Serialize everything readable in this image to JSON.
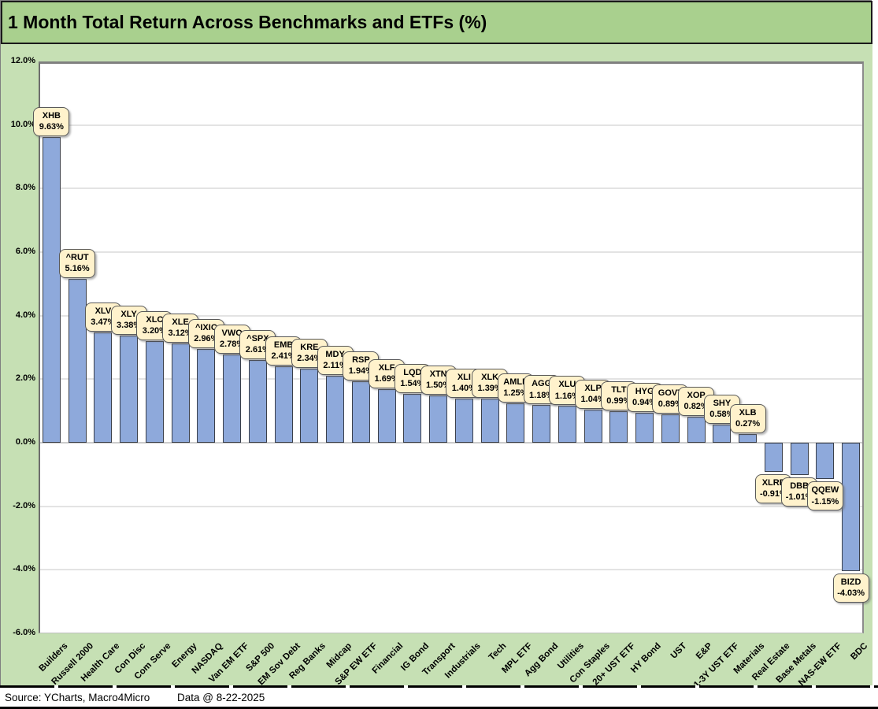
{
  "title": "1 Month Total Return Across Benchmarks and ETFs (%)",
  "footer": {
    "source": "Source: YCharts, Macro4Micro",
    "data_date": "Data @ 8-22-2025"
  },
  "colors": {
    "title_bg": "#A9D08E",
    "chart_bg": "#C6E0B4",
    "plot_bg": "#FFFFFF",
    "bar_fill": "#8EA9DB",
    "bar_border": "#3a3f4a",
    "callout_bg": "#FFF2CC",
    "callout_border": "#595959",
    "gridline": "#e3e3e3",
    "text": "#000000"
  },
  "chart_data": {
    "type": "bar",
    "title": "1 Month Total Return Across Benchmarks and ETFs (%)",
    "xlabel": "",
    "ylabel": "",
    "ylim": [
      -6,
      12
    ],
    "ytick_step": 2,
    "ytick_labels": [
      "12.0%",
      "10.0%",
      "8.0%",
      "6.0%",
      "4.0%",
      "2.0%",
      "0.0%",
      "-2.0%",
      "-4.0%",
      "-6.0%"
    ],
    "grid": true,
    "legend": false,
    "data_label_style": "rounded callout with ticker and percent",
    "categories": [
      "Builders",
      "Russell 2000",
      "Health Care",
      "Con Disc",
      "Com Serve",
      "Energy",
      "NASDAQ",
      "Van EM ETF",
      "S&P 500",
      "EM Sov Debt",
      "Reg Banks",
      "Midcap",
      "S&P EW ETF",
      "Financial",
      "IG Bond",
      "Transport",
      "Industrials",
      "Tech",
      "MPL ETF",
      "Agg Bond",
      "Utilities",
      "Con Staples",
      "20+ UST ETF",
      "HY Bond",
      "UST",
      "E&P",
      "1-3Y UST ETF",
      "Materials",
      "Real Estate",
      "Base Metals",
      "NAS-EW ETF",
      "BDC"
    ],
    "tickers": [
      "XHB",
      "^RUT",
      "XLV",
      "XLY",
      "XLC",
      "XLE",
      "^IXIC",
      "VWO",
      "^SPX",
      "EMB",
      "KRE",
      "MDY",
      "RSP",
      "XLF",
      "LQD",
      "XTN",
      "XLI",
      "XLK",
      "AMLP",
      "AGG",
      "XLU",
      "XLP",
      "TLT",
      "HYG",
      "GOVT",
      "XOP",
      "SHY",
      "XLB",
      "XLRE",
      "DBB",
      "QQEW",
      "BIZD"
    ],
    "values": [
      9.63,
      5.16,
      3.47,
      3.38,
      3.2,
      3.12,
      2.96,
      2.78,
      2.61,
      2.41,
      2.34,
      2.11,
      1.94,
      1.69,
      1.54,
      1.5,
      1.4,
      1.39,
      1.25,
      1.18,
      1.16,
      1.04,
      0.99,
      0.94,
      0.89,
      0.82,
      0.58,
      0.27,
      -0.91,
      -1.01,
      -1.15,
      -4.03
    ],
    "value_labels": [
      "9.63%",
      "5.16%",
      "3.47%",
      "3.38%",
      "3.20%",
      "3.12%",
      "2.96%",
      "2.78%",
      "2.61%",
      "2.41%",
      "2.34%",
      "2.11%",
      "1.94%",
      "1.69%",
      "1.54%",
      "1.50%",
      "1.40%",
      "1.39%",
      "1.25%",
      "1.18%",
      "1.16%",
      "1.04%",
      "0.99%",
      "0.94%",
      "0.89%",
      "0.82%",
      "0.58%",
      "0.27%",
      "-0.91%",
      "-1.01%",
      "-1.15%",
      "-4.03%"
    ]
  }
}
